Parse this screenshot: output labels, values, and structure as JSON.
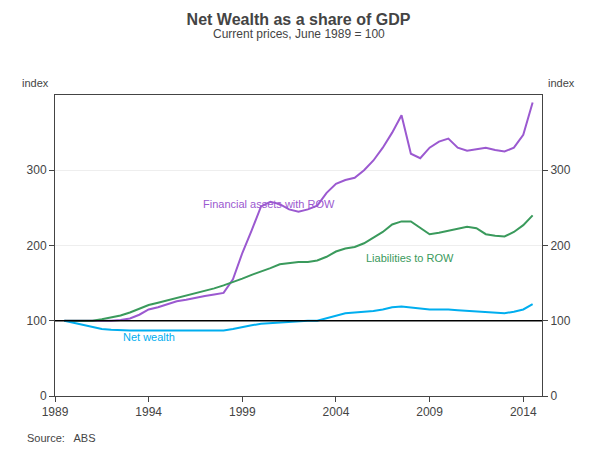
{
  "chart_data": {
    "type": "line",
    "title": "Net Wealth as a share of GDP",
    "subtitle": "Current prices, June 1989 = 100",
    "ylabel": "index",
    "y2label": "index",
    "source": "Source:   ABS",
    "xlim": [
      1989,
      2015
    ],
    "xticks": [
      1989,
      1994,
      1999,
      2004,
      2009,
      2014
    ],
    "ylim": [
      0,
      400
    ],
    "yticks": [
      0,
      100,
      200,
      300
    ],
    "y2lim": [
      0,
      400
    ],
    "y2ticks": [
      0,
      100,
      200,
      300
    ],
    "grid": true,
    "reference_line": {
      "y": 100,
      "color": "#000000"
    },
    "x": [
      1989.5,
      1990.0,
      1990.5,
      1991.0,
      1991.5,
      1992.0,
      1992.5,
      1993.0,
      1993.5,
      1994.0,
      1994.5,
      1995.0,
      1995.5,
      1996.0,
      1996.5,
      1997.0,
      1997.5,
      1998.0,
      1998.5,
      1999.0,
      1999.5,
      2000.0,
      2000.5,
      2001.0,
      2001.5,
      2002.0,
      2002.5,
      2003.0,
      2003.5,
      2004.0,
      2004.5,
      2005.0,
      2005.5,
      2006.0,
      2006.5,
      2007.0,
      2007.5,
      2008.0,
      2008.5,
      2009.0,
      2009.5,
      2010.0,
      2010.5,
      2011.0,
      2011.5,
      2012.0,
      2012.5,
      2013.0,
      2013.5,
      2014.0,
      2014.5
    ],
    "series": [
      {
        "name": "Financial assets with ROW",
        "color": "#9B59D0",
        "label": {
          "x": 1996.8,
          "y": 245
        },
        "values": [
          100,
          100,
          99,
          99,
          99,
          100,
          101,
          103,
          108,
          115,
          118,
          122,
          126,
          128,
          130,
          133,
          135,
          137,
          155,
          190,
          220,
          252,
          258,
          255,
          248,
          245,
          248,
          253,
          270,
          282,
          287,
          290,
          300,
          313,
          330,
          350,
          373,
          322,
          316,
          330,
          338,
          342,
          330,
          326,
          328,
          330,
          327,
          325,
          330,
          347,
          390
        ]
      },
      {
        "name": "Liabilities to ROW",
        "color": "#3A9A5C",
        "label": {
          "x": 2005.5,
          "y": 173
        },
        "values": [
          100,
          100,
          100,
          100,
          102,
          104,
          107,
          111,
          116,
          121,
          124,
          127,
          130,
          133,
          136,
          139,
          143,
          147,
          151,
          156,
          161,
          165,
          170,
          175,
          177,
          178,
          178,
          180,
          185,
          192,
          196,
          198,
          203,
          210,
          218,
          228,
          232,
          232,
          223,
          215,
          217,
          220,
          222,
          225,
          223,
          215,
          213,
          212,
          218,
          227,
          240
        ]
      },
      {
        "name": "Net wealth",
        "color": "#00AEEF",
        "label": {
          "x": 1992.5,
          "y": 68
        },
        "values": [
          100,
          97,
          94,
          91,
          89,
          88,
          87,
          87,
          87,
          87,
          87,
          87,
          87,
          87,
          87,
          87,
          87,
          87,
          89,
          92,
          94,
          96,
          97,
          98,
          99,
          99,
          100,
          100,
          103,
          107,
          110,
          111,
          112,
          113,
          115,
          118,
          119,
          118,
          116,
          115,
          115,
          115,
          114,
          113,
          113,
          112,
          111,
          110,
          112,
          115,
          122
        ]
      }
    ]
  }
}
